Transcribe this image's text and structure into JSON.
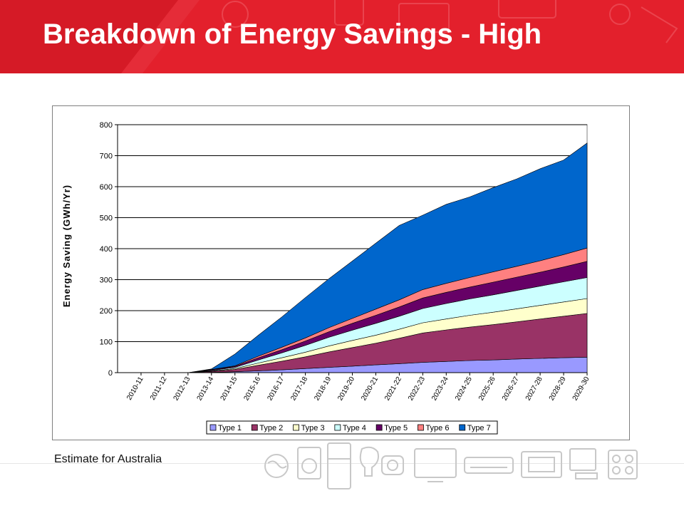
{
  "slide": {
    "title": "Breakdown of Energy Savings - High",
    "footnote": "Estimate for Australia",
    "accent_color": "#e3202c"
  },
  "chart_data": {
    "type": "area",
    "stacked": true,
    "ylabel": "Energy Saving (GWh/Yr)",
    "xlabel": "",
    "ylim": [
      0,
      800
    ],
    "yticks": [
      0,
      100,
      200,
      300,
      400,
      500,
      600,
      700,
      800
    ],
    "grid": "horizontal",
    "legend_position": "bottom",
    "categories": [
      "2010-11",
      "2011-12",
      "2012-13",
      "2013-14",
      "2014-15",
      "2015-16",
      "2016-17",
      "2017-18",
      "2018-19",
      "2019-20",
      "2020-21",
      "2021-22",
      "2022-23",
      "2023-24",
      "2024-25",
      "2025-26",
      "2026-27",
      "2027-28",
      "2028-29",
      "2029-30"
    ],
    "series": [
      {
        "name": "Type 1",
        "color": "#9999ff",
        "values": [
          0,
          0,
          0,
          1,
          3,
          6,
          9,
          13,
          17,
          21,
          25,
          29,
          33,
          36,
          39,
          41,
          44,
          46,
          48,
          50
        ]
      },
      {
        "name": "Type 2",
        "color": "#993366",
        "values": [
          0,
          0,
          0,
          3,
          7,
          18,
          28,
          38,
          50,
          60,
          70,
          82,
          95,
          102,
          108,
          114,
          120,
          127,
          134,
          141
        ]
      },
      {
        "name": "Type 3",
        "color": "#ffffcc",
        "values": [
          0,
          0,
          0,
          1,
          3,
          7,
          11,
          15,
          19,
          23,
          26,
          29,
          33,
          35,
          38,
          40,
          42,
          44,
          46,
          48
        ]
      },
      {
        "name": "Type 4",
        "color": "#ccffff",
        "values": [
          0,
          0,
          0,
          2,
          4,
          10,
          16,
          22,
          28,
          33,
          38,
          42,
          46,
          50,
          53,
          56,
          59,
          62,
          65,
          68
        ]
      },
      {
        "name": "Type 5",
        "color": "#660066",
        "values": [
          0,
          0,
          0,
          2,
          3,
          7,
          10,
          14,
          18,
          22,
          26,
          30,
          34,
          36,
          38,
          41,
          43,
          45,
          48,
          52
        ]
      },
      {
        "name": "Type 6",
        "color": "#ff8080",
        "values": [
          0,
          0,
          0,
          1,
          2,
          5,
          8,
          10,
          13,
          16,
          20,
          23,
          27,
          29,
          31,
          33,
          35,
          37,
          40,
          43
        ]
      },
      {
        "name": "Type 7",
        "color": "#0066cc",
        "values": [
          0,
          0,
          0,
          2,
          38,
          68,
          98,
          130,
          158,
          185,
          213,
          240,
          240,
          255,
          260,
          272,
          282,
          297,
          305,
          339
        ]
      }
    ]
  }
}
